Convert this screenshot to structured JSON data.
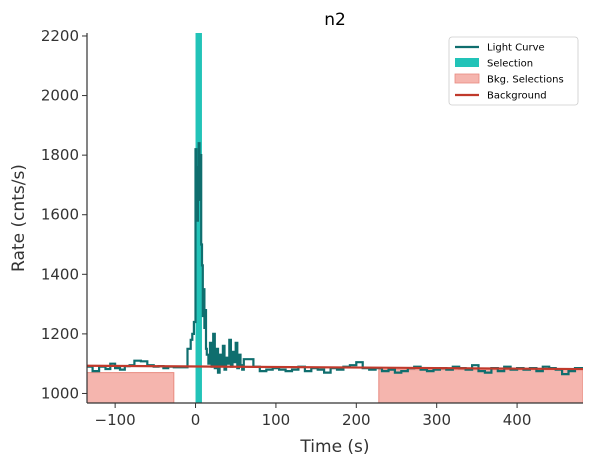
{
  "chart_data": {
    "type": "line",
    "title": "n2",
    "xlabel": "Time (s)",
    "ylabel": "Rate (cnts/s)",
    "xlim": [
      -135,
      482
    ],
    "ylim": [
      968,
      2210
    ],
    "xticks": [
      -100,
      0,
      100,
      200,
      300,
      400
    ],
    "yticks": [
      1000,
      1200,
      1400,
      1600,
      1800,
      2000,
      2200
    ],
    "xtick_labels": [
      "−100",
      "0",
      "100",
      "200",
      "300",
      "400"
    ],
    "ytick_labels": [
      "1000",
      "1200",
      "1400",
      "1600",
      "1800",
      "2000",
      "2200"
    ],
    "grid": false,
    "legend_position": "top-right",
    "colors": {
      "light_curve": "#0f6e6e",
      "selection": "#22c3b8",
      "bkg_selection_fill": "#f5b5ae",
      "bkg_selection_edge": "#e88a80",
      "background": "#c0392b",
      "axis": "#333333"
    },
    "legend": [
      {
        "label": "Light Curve",
        "kind": "line",
        "color": "#0f6e6e"
      },
      {
        "label": "Selection",
        "kind": "patch",
        "color": "#22c3b8"
      },
      {
        "label": "Bkg. Selections",
        "kind": "patch",
        "color": "#f5b5ae"
      },
      {
        "label": "Background",
        "kind": "line",
        "color": "#c0392b"
      }
    ],
    "selection": {
      "x0": 0,
      "x1": 8
    },
    "bkg_selections": [
      {
        "x0": -135,
        "x1": -27,
        "top": 1070
      },
      {
        "x0": 228,
        "x1": 482,
        "top": 1080
      }
    ],
    "background_line": {
      "x": [
        -135,
        482
      ],
      "y": [
        1093,
        1082
      ]
    },
    "light_curve": {
      "x": [
        -135,
        -128,
        -120,
        -112,
        -106,
        -100,
        -94,
        -88,
        -82,
        -76,
        -68,
        -60,
        -52,
        -46,
        -40,
        -34,
        -27,
        -10,
        -6,
        -4,
        -2,
        0,
        1,
        2,
        3,
        4,
        5,
        6,
        7,
        8,
        9,
        10,
        11,
        12,
        13,
        14,
        16,
        18,
        20,
        22,
        24,
        26,
        28,
        30,
        32,
        34,
        36,
        38,
        40,
        42,
        44,
        46,
        48,
        50,
        52,
        54,
        56,
        58,
        60,
        62,
        64,
        66,
        68,
        72,
        80,
        88,
        96,
        104,
        112,
        120,
        128,
        136,
        144,
        152,
        160,
        168,
        176,
        184,
        192,
        200,
        208,
        216,
        224,
        232,
        240,
        248,
        256,
        264,
        272,
        280,
        288,
        296,
        304,
        312,
        320,
        328,
        336,
        344,
        352,
        360,
        368,
        376,
        384,
        392,
        400,
        408,
        416,
        424,
        432,
        440,
        448,
        456,
        464,
        472,
        482
      ],
      "y": [
        1090,
        1075,
        1090,
        1082,
        1100,
        1085,
        1080,
        1092,
        1095,
        1110,
        1108,
        1095,
        1090,
        1092,
        1085,
        1090,
        1088,
        1150,
        1180,
        1200,
        1240,
        1820,
        1700,
        1580,
        1760,
        1840,
        1650,
        1800,
        1500,
        1430,
        1260,
        1350,
        1220,
        1280,
        1150,
        1130,
        1100,
        1170,
        1090,
        1200,
        1085,
        1150,
        1070,
        1130,
        1095,
        1160,
        1080,
        1120,
        1100,
        1180,
        1090,
        1140,
        1105,
        1170,
        1085,
        1130,
        1095,
        1080,
        1115,
        1115,
        1115,
        1115,
        1115,
        1090,
        1075,
        1080,
        1085,
        1080,
        1075,
        1080,
        1090,
        1075,
        1085,
        1080,
        1070,
        1085,
        1080,
        1090,
        1095,
        1105,
        1085,
        1080,
        1085,
        1075,
        1080,
        1070,
        1075,
        1085,
        1090,
        1080,
        1075,
        1080,
        1085,
        1080,
        1090,
        1085,
        1080,
        1095,
        1075,
        1070,
        1085,
        1075,
        1090,
        1080,
        1085,
        1080,
        1085,
        1075,
        1090,
        1085,
        1080,
        1065,
        1075,
        1085,
        1080
      ]
    }
  }
}
